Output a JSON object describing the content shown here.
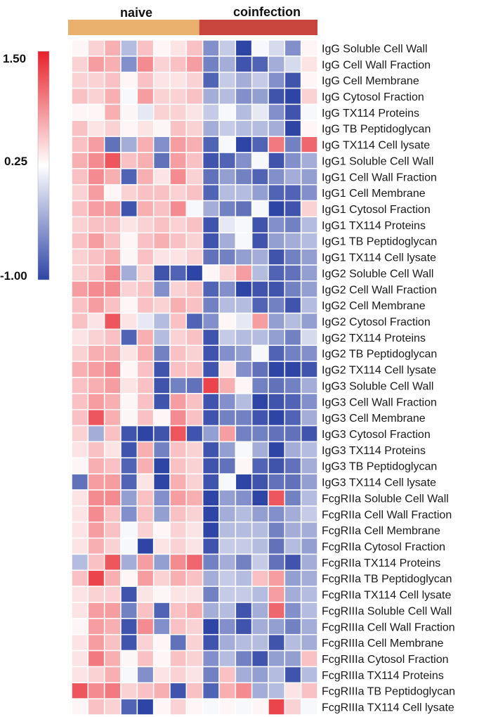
{
  "chart_data": {
    "type": "heatmap",
    "groups": [
      {
        "name": "naive",
        "columns": 8,
        "color": "#E9B06E"
      },
      {
        "name": "coinfection",
        "columns": 7,
        "color": "#C8463D"
      }
    ],
    "colorbar": {
      "max_label": "1.50",
      "mid_label": "0.25",
      "min_label": "-1.00",
      "vmin": -1.0,
      "vmid": 0.25,
      "vmax": 1.5,
      "low_color": "#2F45A6",
      "mid_color": "#FFFFFF",
      "high_color": "#E8202A"
    },
    "rows": [
      "IgG Soluble Cell Wall",
      "IgG Cell Wall Fraction",
      "IgG Cell Membrane",
      "IgG Cytosol Fraction",
      "IgG TX114 Proteins",
      "IgG TB Peptidoglycan",
      "IgG TX114 Cell lysate",
      "IgG1 Soluble Cell Wall",
      "IgG1 Cell Wall Fraction",
      "IgG1 Cell Membrane",
      "IgG1 Cytosol Fraction",
      "IgG1 TX114 Proteins",
      "IgG1 TB Peptidoglycan",
      "IgG1 TX114 Cell lysate",
      "IgG2 Soluble Cell Wall",
      "IgG2 Cell Wall Fraction",
      "IgG2 Cell Membrane",
      "IgG2 Cytosol Fraction",
      "IgG2 TX114 Proteins",
      "IgG2 TB Peptidoglycan",
      "IgG2 TX114 Cell lysate",
      "IgG3 Soluble Cell Wall",
      "IgG3 Cell Wall Fraction",
      "IgG3 Cell Membrane",
      "IgG3 Cytosol Fraction",
      "IgG3 TX114 Proteins",
      "IgG3 TB Peptidoglycan",
      "IgG3 TX114 Cell lysate",
      "FcgRIIa Soluble Cell Wall",
      "FcgRIIa Cell Wall Fraction",
      "FcgRIIa Cell Membrane",
      "FcgRIIa Cytosol Fraction",
      "FcgRIIa TX114 Proteins",
      "FcgRIIa TB Peptidoglycan",
      "FcgRIIa TX114 Cell lysate",
      "FcgRIIIa Soluble Cell Wall",
      "FcgRIIIa Cell Wall Fraction",
      "FcgRIIIa Cell Membrane",
      "FcgRIIIa Cytosol Fraction",
      "FcgRIIIa TX114 Proteins",
      "FcgRIIIa TB Peptidoglycan",
      "FcgRIIIa TX114 Cell lysate"
    ],
    "values": [
      [
        0.3,
        0.5,
        0.7,
        -0.2,
        0.6,
        0.3,
        0.4,
        0.6,
        -0.5,
        -0.1,
        -1.0,
        0.2,
        0.0,
        -0.5,
        0.3
      ],
      [
        0.5,
        0.8,
        0.7,
        -0.5,
        0.9,
        0.5,
        0.6,
        0.8,
        -0.6,
        -0.3,
        -0.9,
        -0.8,
        -0.3,
        0.0,
        0.4
      ],
      [
        0.5,
        0.5,
        0.6,
        0.3,
        0.6,
        0.4,
        0.4,
        0.5,
        -0.8,
        -0.1,
        -0.3,
        -0.1,
        -0.5,
        -0.9,
        0.3
      ],
      [
        0.6,
        0.5,
        0.7,
        0.2,
        0.8,
        0.5,
        0.5,
        0.6,
        -0.3,
        -0.2,
        -0.5,
        -0.4,
        -0.9,
        -1.0,
        0.5
      ],
      [
        0.3,
        0.3,
        0.7,
        0.3,
        0.1,
        0.5,
        0.5,
        0.4,
        -0.1,
        0.2,
        -0.2,
        0.1,
        -0.5,
        -0.9,
        0.2
      ],
      [
        0.6,
        0.4,
        0.5,
        0.3,
        0.4,
        0.3,
        0.6,
        0.5,
        -0.3,
        -0.1,
        -0.2,
        -0.2,
        -0.3,
        -1.0,
        0.3
      ],
      [
        0.6,
        0.8,
        -0.7,
        -0.3,
        0.7,
        -0.5,
        0.8,
        0.7,
        -0.8,
        0.2,
        -1.0,
        -0.8,
        1.0,
        -0.6,
        1.1
      ],
      [
        0.7,
        0.9,
        1.2,
        0.6,
        0.7,
        -0.7,
        0.8,
        0.6,
        -0.9,
        -0.8,
        -0.5,
        0.2,
        -0.9,
        -0.5,
        -0.3
      ],
      [
        0.6,
        0.9,
        0.7,
        -0.8,
        0.7,
        0.4,
        0.9,
        0.5,
        -0.7,
        -0.4,
        -0.6,
        -0.8,
        -0.5,
        -0.3,
        -0.4
      ],
      [
        0.5,
        0.8,
        0.3,
        0.5,
        0.6,
        0.6,
        0.5,
        0.6,
        -0.8,
        -0.2,
        -0.2,
        -0.4,
        -0.8,
        -0.8,
        -0.5
      ],
      [
        0.6,
        0.8,
        0.8,
        -0.9,
        0.7,
        0.6,
        0.9,
        0.2,
        -0.3,
        -0.6,
        -0.7,
        0.2,
        -1.0,
        -0.9,
        0.5
      ],
      [
        0.5,
        0.6,
        0.6,
        0.4,
        0.5,
        0.6,
        0.5,
        0.6,
        -0.9,
        0.1,
        0.2,
        -0.9,
        -0.5,
        -0.6,
        -0.2
      ],
      [
        0.6,
        0.8,
        0.6,
        0.3,
        0.6,
        0.7,
        0.6,
        0.5,
        -0.9,
        -0.3,
        0.2,
        -0.9,
        -0.4,
        -0.3,
        -0.2
      ],
      [
        0.5,
        0.6,
        0.7,
        0.3,
        0.6,
        0.4,
        0.4,
        0.5,
        -0.7,
        -0.6,
        -0.4,
        -0.3,
        -0.9,
        -0.6,
        -0.4
      ],
      [
        0.5,
        0.6,
        0.9,
        -0.3,
        0.5,
        -0.9,
        -0.8,
        -1.0,
        0.3,
        0.5,
        0.8,
        -0.2,
        -0.8,
        -0.7,
        -0.4
      ],
      [
        0.8,
        0.9,
        0.9,
        0.5,
        0.6,
        -0.5,
        0.5,
        0.6,
        -0.8,
        -0.5,
        -1.0,
        -0.9,
        -0.9,
        -0.6,
        -0.4
      ],
      [
        0.6,
        0.8,
        0.6,
        0.3,
        0.6,
        0.5,
        0.7,
        0.6,
        -0.6,
        -0.2,
        -0.2,
        -0.8,
        -0.6,
        -0.9,
        -0.2
      ],
      [
        0.6,
        0.4,
        1.2,
        0.4,
        0.1,
        -0.2,
        0.6,
        -0.8,
        -0.5,
        0.3,
        0.1,
        0.8,
        -0.4,
        -0.2,
        -0.4
      ],
      [
        0.4,
        0.5,
        0.6,
        -0.8,
        0.7,
        -0.2,
        0.5,
        0.6,
        -0.9,
        -0.1,
        -0.2,
        -0.2,
        -0.4,
        -0.6,
        0.0
      ],
      [
        0.5,
        0.7,
        0.7,
        0.4,
        0.7,
        -0.6,
        0.6,
        0.5,
        -0.9,
        -0.5,
        -0.4,
        0.2,
        -0.8,
        -0.6,
        -0.5
      ],
      [
        0.7,
        0.8,
        0.9,
        0.3,
        0.6,
        -0.9,
        0.6,
        0.6,
        -0.9,
        0.4,
        -0.5,
        -0.7,
        -1.0,
        -1.0,
        -0.9
      ],
      [
        0.6,
        0.7,
        0.8,
        0.4,
        0.6,
        -0.9,
        -0.6,
        -0.7,
        1.3,
        0.7,
        0.3,
        -0.6,
        -0.7,
        -0.6,
        -0.3
      ],
      [
        0.6,
        0.8,
        0.7,
        0.3,
        0.6,
        -0.9,
        0.8,
        0.6,
        -0.9,
        -0.5,
        -0.2,
        -1.0,
        -0.9,
        -0.8,
        -0.5
      ],
      [
        0.6,
        1.2,
        0.7,
        0.3,
        0.6,
        0.3,
        0.9,
        0.6,
        -0.9,
        -0.6,
        -0.6,
        -0.9,
        -1.0,
        -0.8,
        -0.3
      ],
      [
        0.5,
        -0.3,
        0.6,
        -0.9,
        -1.0,
        -0.9,
        1.2,
        -0.9,
        -0.4,
        0.8,
        -0.6,
        -0.6,
        -0.7,
        -0.7,
        -0.9
      ],
      [
        0.4,
        0.6,
        0.4,
        -0.9,
        0.7,
        -0.6,
        0.6,
        0.5,
        -0.9,
        -0.4,
        0.2,
        -0.3,
        -1.0,
        -0.3,
        -0.2
      ],
      [
        0.3,
        0.7,
        0.6,
        -0.8,
        0.7,
        -1.0,
        0.6,
        0.5,
        -0.9,
        -0.7,
        0.3,
        -0.8,
        -0.9,
        -0.7,
        -0.3
      ],
      [
        -0.7,
        0.8,
        0.8,
        -0.8,
        0.4,
        -1.0,
        0.7,
        0.5,
        -0.9,
        0.2,
        -1.0,
        -0.9,
        -0.7,
        -0.7,
        -0.4
      ],
      [
        0.4,
        0.9,
        0.9,
        -0.4,
        0.6,
        -0.5,
        0.8,
        0.7,
        -1.0,
        -0.4,
        -0.5,
        -1.0,
        1.2,
        -0.6,
        -0.2
      ],
      [
        0.4,
        0.9,
        0.6,
        -0.5,
        0.6,
        -0.4,
        0.6,
        0.5,
        -1.0,
        -0.3,
        -0.2,
        -0.4,
        -0.5,
        -0.3,
        -0.1
      ],
      [
        0.4,
        0.8,
        0.6,
        0.2,
        0.5,
        0.3,
        0.5,
        0.4,
        -1.0,
        -0.2,
        -0.2,
        -0.2,
        -0.6,
        -0.3,
        -0.3
      ],
      [
        0.4,
        0.7,
        0.5,
        0.2,
        -1.0,
        0.4,
        0.5,
        0.4,
        -0.9,
        -0.1,
        -0.1,
        -0.2,
        -0.7,
        -0.2,
        -0.4
      ],
      [
        -0.2,
        0.6,
        1.2,
        -0.3,
        0.8,
        -0.4,
        0.9,
        1.1,
        -0.6,
        -0.3,
        -0.6,
        -0.1,
        -0.7,
        -0.9,
        -0.3
      ],
      [
        0.6,
        1.3,
        0.7,
        0.3,
        0.8,
        0.5,
        0.7,
        0.6,
        -0.3,
        -0.1,
        -0.2,
        0.6,
        0.8,
        -0.4,
        -0.3
      ],
      [
        0.4,
        0.5,
        0.5,
        -0.9,
        0.4,
        0.3,
        0.4,
        0.4,
        -0.6,
        -0.1,
        -0.1,
        -0.2,
        0.8,
        -0.3,
        -0.2
      ],
      [
        0.4,
        0.8,
        0.8,
        -0.6,
        0.6,
        -0.8,
        0.6,
        0.7,
        -0.3,
        -0.2,
        -0.9,
        -0.3,
        1.1,
        -0.5,
        -0.2
      ],
      [
        0.3,
        0.8,
        0.7,
        -0.9,
        0.9,
        -0.5,
        0.6,
        0.5,
        -1.0,
        -0.5,
        -0.9,
        -0.3,
        -0.4,
        -0.6,
        -0.3
      ],
      [
        0.4,
        0.8,
        0.6,
        -0.9,
        0.5,
        0.3,
        -0.7,
        0.5,
        -0.9,
        -0.3,
        -0.2,
        -0.2,
        -0.9,
        -0.2,
        -0.3
      ],
      [
        0.4,
        1.0,
        0.7,
        0.3,
        0.6,
        0.3,
        0.6,
        0.5,
        -0.5,
        -0.2,
        -0.6,
        -0.9,
        -0.4,
        -0.4,
        0.6
      ],
      [
        0.4,
        0.5,
        0.7,
        0.2,
        -0.5,
        0.4,
        0.5,
        0.4,
        -0.6,
        0.6,
        -0.3,
        -0.4,
        -0.2,
        -0.9,
        -0.2
      ],
      [
        1.2,
        0.9,
        1.0,
        0.5,
        0.6,
        0.7,
        -0.9,
        0.6,
        -0.8,
        0.7,
        0.9,
        -0.3,
        -0.2,
        0.4,
        0.6
      ],
      [
        0.3,
        0.6,
        0.5,
        -0.8,
        -1.0,
        0.3,
        0.5,
        0.3,
        0.2,
        0.3,
        0.2,
        0.3,
        1.3,
        0.5,
        0.2
      ]
    ]
  }
}
